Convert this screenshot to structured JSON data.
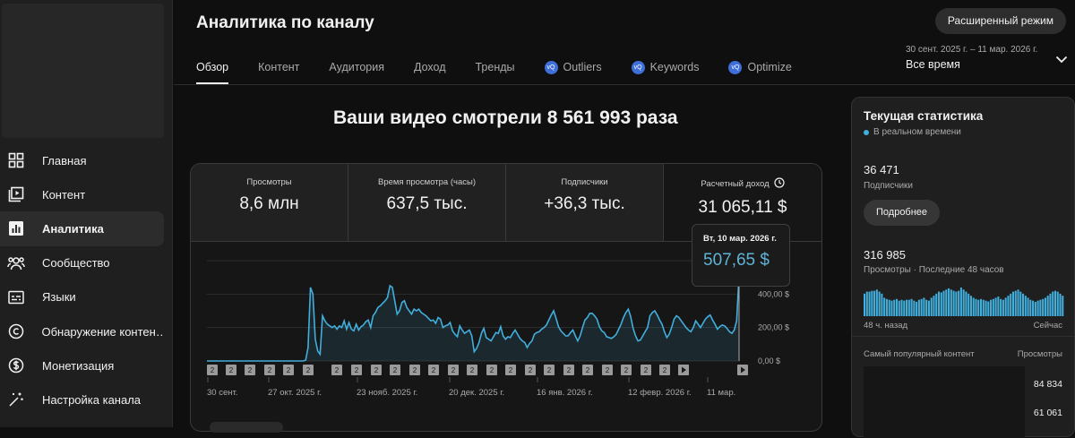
{
  "header": {
    "title": "Аналитика по каналу",
    "advanced_button": "Расширенный режим"
  },
  "tabs": [
    {
      "label": "Обзор",
      "active": true
    },
    {
      "label": "Контент"
    },
    {
      "label": "Аудитория"
    },
    {
      "label": "Доход"
    },
    {
      "label": "Тренды"
    },
    {
      "label": "Outliers",
      "icon": "extension-badge-icon"
    },
    {
      "label": "Keywords",
      "icon": "extension-badge-icon"
    },
    {
      "label": "Optimize",
      "icon": "extension-badge-icon"
    }
  ],
  "date_range": {
    "period": "30 сент. 2025 г. – 11 мар. 2026 г.",
    "label": "Все время"
  },
  "sidebar": {
    "items": [
      {
        "label": "Главная",
        "icon": "dashboard-icon"
      },
      {
        "label": "Контент",
        "icon": "content-icon"
      },
      {
        "label": "Аналитика",
        "icon": "analytics-icon",
        "active": true
      },
      {
        "label": "Сообщество",
        "icon": "community-icon"
      },
      {
        "label": "Языки",
        "icon": "subtitles-icon"
      },
      {
        "label": "Обнаружение контен…",
        "icon": "copyright-icon"
      },
      {
        "label": "Монетизация",
        "icon": "dollar-icon"
      },
      {
        "label": "Настройка канала",
        "icon": "magic-wand-icon"
      }
    ]
  },
  "overview": {
    "headline": "Ваши видео смотрели 8 561 993 раза",
    "metrics": [
      {
        "label": "Просмотры",
        "value": "8,6 млн"
      },
      {
        "label": "Время просмотра (часы)",
        "value": "637,5 тыс."
      },
      {
        "label": "Подписчики",
        "value": "+36,3 тыс."
      },
      {
        "label": "Расчетный доход",
        "value": "31 065,11 $"
      }
    ],
    "tooltip": {
      "date": "Вт, 10 мар. 2026 г.",
      "value": "507,65 $"
    }
  },
  "chart_data": {
    "type": "area",
    "series": [
      {
        "values": [
          0,
          0,
          0,
          0,
          0,
          0,
          0,
          0,
          0,
          0,
          0,
          0,
          0,
          0,
          0,
          0,
          0,
          0,
          0,
          0,
          0,
          0,
          0,
          0,
          0,
          0,
          0,
          0,
          0,
          0,
          0,
          0,
          0,
          0,
          0,
          0,
          0,
          0,
          0,
          0,
          0,
          5,
          80,
          440,
          400,
          130,
          60,
          40,
          270,
          240,
          220,
          210,
          200,
          210,
          190,
          210,
          200,
          240,
          190,
          230,
          190,
          180,
          220,
          185,
          205,
          215,
          235,
          245,
          200,
          270,
          290,
          320,
          330,
          345,
          360,
          380,
          450,
          440,
          360,
          280,
          300,
          350,
          360,
          320,
          300,
          280,
          310,
          300,
          310,
          290,
          280,
          270,
          255,
          240,
          245,
          225,
          260,
          250,
          200,
          210,
          215,
          230,
          180,
          160,
          145,
          210,
          185,
          165,
          175,
          185,
          150,
          55,
          75,
          110,
          165,
          195,
          140,
          130,
          120,
          145,
          170,
          165,
          205,
          150,
          130,
          145,
          140,
          165,
          185,
          160,
          135,
          120,
          110,
          80,
          105,
          120,
          160,
          170,
          175,
          190,
          200,
          215,
          245,
          275,
          300,
          255,
          205,
          180,
          165,
          150,
          150,
          170,
          185,
          150,
          120,
          150,
          200,
          245,
          260,
          285,
          285,
          270,
          250,
          205,
          180,
          170,
          145,
          140,
          135,
          145,
          160,
          190,
          220,
          260,
          290,
          310,
          265,
          195,
          150,
          120,
          125,
          150,
          175,
          200,
          270,
          290,
          300,
          275,
          245,
          220,
          175,
          140,
          160,
          200,
          250,
          270,
          260,
          240,
          220,
          200,
          185,
          175,
          200,
          240,
          220,
          200,
          225,
          250,
          265,
          275,
          245,
          220,
          190,
          205,
          215,
          210,
          195,
          175,
          165,
          185,
          240,
          510
        ]
      }
    ],
    "x_tick_labels": [
      "30 сент.",
      "27 окт. 2025 г.",
      "23 нояб. 2025 г.",
      "20 дек. 2025 г.",
      "16 янв. 2026 г.",
      "12 февр. 2026 г.",
      "11 мар."
    ],
    "y_tick_labels": [
      "400,00 $",
      "200,00 $",
      "0,00 $"
    ],
    "ylim": [
      0,
      600
    ],
    "grid": true
  },
  "realtime": {
    "title": "Текущая статистика",
    "live_label": "В реальном времени",
    "subscribers_value": "36 471",
    "subscribers_label": "Подписчики",
    "more_button": "Подробнее",
    "views_value": "316 985",
    "views_label": "Просмотры · Последние 48 часов",
    "ago_label": "48 ч. назад",
    "now_label": "Сейчас",
    "top_content_label": "Самый популярный контент",
    "views_col_label": "Просмотры",
    "top_values": [
      "84 834",
      "61 061"
    ],
    "mini_bars": [
      55,
      60,
      60,
      62,
      62,
      65,
      60,
      55,
      45,
      42,
      40,
      38,
      40,
      42,
      38,
      40,
      38,
      40,
      40,
      42,
      38,
      35,
      40,
      42,
      45,
      40,
      38,
      45,
      50,
      55,
      60,
      58,
      62,
      65,
      68,
      65,
      62,
      60,
      62,
      70,
      65,
      60,
      55,
      50,
      45,
      42,
      40,
      42,
      40,
      38,
      36,
      40,
      42,
      45,
      48,
      42,
      40,
      45,
      50,
      55,
      60,
      62,
      65,
      60,
      55,
      50,
      45,
      40,
      38,
      35,
      38,
      40,
      42,
      45,
      50,
      55,
      60,
      62,
      60,
      55,
      50
    ]
  }
}
